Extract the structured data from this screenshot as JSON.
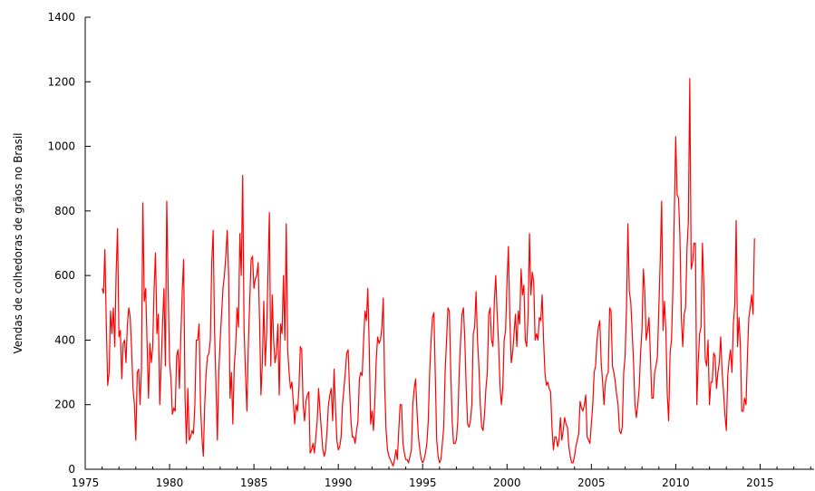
{
  "chart_data": {
    "type": "line",
    "title": "",
    "xlabel": "",
    "ylabel": "Vendas de colhedoras de grãos no Brasil",
    "xlim": [
      1975,
      2018.2
    ],
    "ylim": [
      0,
      1400
    ],
    "x_ticks": [
      1975,
      1980,
      1985,
      1990,
      1995,
      2000,
      2005,
      2010,
      2015
    ],
    "y_ticks": [
      0,
      200,
      400,
      600,
      800,
      1000,
      1200,
      1400
    ],
    "grid": false,
    "legend": "none",
    "line_color": "#ff0000",
    "series": [
      {
        "x_start": 1976.0,
        "x_step": 0.08333,
        "values": [
          560,
          545,
          680,
          450,
          260,
          300,
          490,
          420,
          500,
          380,
          610,
          745,
          410,
          430,
          280,
          390,
          400,
          330,
          450,
          500,
          470,
          370,
          250,
          200,
          90,
          300,
          310,
          200,
          310,
          825,
          520,
          560,
          390,
          220,
          390,
          330,
          380,
          560,
          670,
          420,
          480,
          200,
          320,
          450,
          560,
          320,
          830,
          560,
          330,
          280,
          170,
          190,
          180,
          350,
          370,
          250,
          410,
          550,
          650,
          220,
          80,
          250,
          90,
          100,
          120,
          110,
          200,
          400,
          400,
          450,
          200,
          100,
          40,
          200,
          300,
          350,
          360,
          400,
          640,
          740,
          430,
          260,
          90,
          300,
          400,
          480,
          560,
          600,
          660,
          740,
          600,
          220,
          300,
          140,
          320,
          380,
          500,
          440,
          730,
          600,
          910,
          430,
          300,
          180,
          380,
          520,
          650,
          660,
          560,
          590,
          600,
          640,
          460,
          230,
          330,
          520,
          320,
          420,
          610,
          795,
          320,
          540,
          400,
          330,
          360,
          450,
          230,
          450,
          420,
          600,
          400,
          760,
          370,
          300,
          250,
          270,
          210,
          140,
          200,
          180,
          250,
          380,
          370,
          200,
          150,
          210,
          230,
          240,
          50,
          60,
          80,
          50,
          100,
          150,
          250,
          180,
          120,
          60,
          40,
          60,
          120,
          200,
          230,
          250,
          150,
          310,
          190,
          90,
          60,
          70,
          100,
          200,
          250,
          300,
          360,
          370,
          250,
          150,
          100,
          100,
          80,
          120,
          150,
          280,
          300,
          290,
          400,
          490,
          460,
          560,
          380,
          140,
          180,
          120,
          210,
          340,
          410,
          390,
          400,
          440,
          530,
          260,
          120,
          60,
          40,
          30,
          20,
          10,
          30,
          60,
          30,
          120,
          200,
          200,
          80,
          50,
          30,
          30,
          20,
          40,
          60,
          200,
          250,
          280,
          180,
          100,
          60,
          30,
          20,
          30,
          50,
          80,
          150,
          300,
          400,
          470,
          485,
          290,
          90,
          40,
          20,
          30,
          80,
          130,
          300,
          400,
          500,
          490,
          300,
          150,
          80,
          80,
          90,
          150,
          300,
          400,
          480,
          500,
          400,
          250,
          140,
          130,
          150,
          200,
          420,
          440,
          550,
          400,
          320,
          200,
          130,
          120,
          170,
          250,
          300,
          480,
          500,
          400,
          380,
          520,
          600,
          480,
          390,
          260,
          200,
          250,
          400,
          430,
          580,
          690,
          470,
          330,
          360,
          420,
          480,
          380,
          490,
          450,
          620,
          540,
          570,
          400,
          380,
          480,
          730,
          540,
          610,
          580,
          400,
          420,
          400,
          470,
          460,
          540,
          400,
          300,
          260,
          270,
          250,
          240,
          130,
          60,
          100,
          100,
          70,
          90,
          160,
          90,
          120,
          160,
          140,
          130,
          70,
          40,
          20,
          20,
          40,
          70,
          90,
          110,
          210,
          190,
          180,
          200,
          230,
          100,
          90,
          80,
          140,
          200,
          300,
          320,
          400,
          440,
          460,
          330,
          270,
          200,
          270,
          290,
          300,
          500,
          490,
          320,
          300,
          270,
          230,
          200,
          120,
          110,
          130,
          300,
          350,
          500,
          760,
          550,
          520,
          430,
          330,
          200,
          160,
          200,
          250,
          360,
          430,
          620,
          550,
          400,
          430,
          470,
          350,
          220,
          220,
          300,
          320,
          350,
          500,
          650,
          830,
          430,
          520,
          430,
          230,
          150,
          360,
          400,
          560,
          790,
          1030,
          850,
          840,
          720,
          470,
          380,
          480,
          500,
          680,
          770,
          1210,
          620,
          640,
          700,
          700,
          200,
          330,
          420,
          440,
          700,
          570,
          340,
          320,
          400,
          200,
          270,
          270,
          360,
          350,
          250,
          300,
          330,
          410,
          300,
          240,
          170,
          120,
          290,
          340,
          370,
          300,
          450,
          510,
          770,
          380,
          470,
          380,
          180,
          180,
          220,
          200,
          350,
          470,
          500,
          540,
          480,
          715
        ]
      }
    ]
  }
}
